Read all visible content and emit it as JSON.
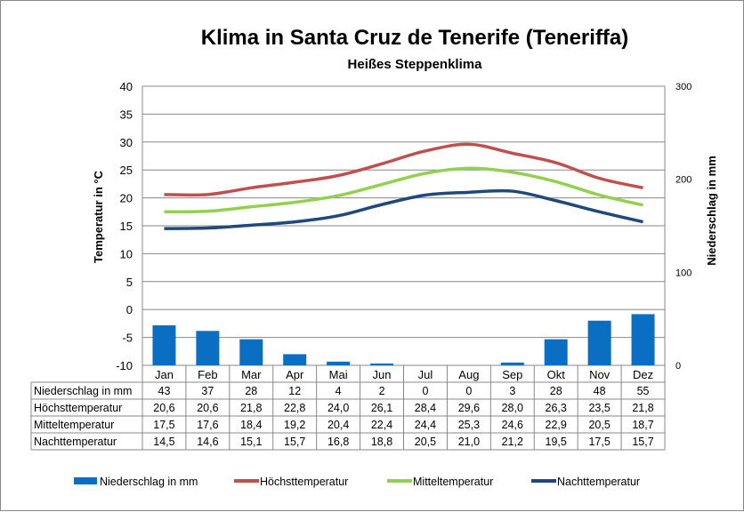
{
  "chart_data": {
    "type": "bar+line",
    "title": "Klima in Santa Cruz de Tenerife (Teneriffa)",
    "subtitle": "Heißes Steppenklima",
    "ylabel_left": "Temperatur in °C",
    "ylabel_right": "Niederschlag in mm",
    "ylim_left": [
      -10,
      40
    ],
    "yticks_left": [
      -10,
      -5,
      0,
      5,
      10,
      15,
      20,
      25,
      30,
      35,
      40
    ],
    "ylim_right": [
      0,
      300
    ],
    "yticks_right": [
      0,
      100,
      200,
      300
    ],
    "grid": true,
    "legend_placement": "bottom",
    "categories": [
      "Jan",
      "Feb",
      "Mar",
      "Apr",
      "Mai",
      "Jun",
      "Jul",
      "Aug",
      "Sep",
      "Okt",
      "Nov",
      "Dez"
    ],
    "series": [
      {
        "name": "Niederschlag in mm",
        "type": "bar",
        "axis": "right",
        "color": "#0a6fc2",
        "values": [
          43,
          37,
          28,
          12,
          4,
          2,
          0,
          0,
          3,
          28,
          48,
          55
        ],
        "labels": [
          "43",
          "37",
          "28",
          "12",
          "4",
          "2",
          "0",
          "0",
          "3",
          "28",
          "48",
          "55"
        ]
      },
      {
        "name": "Höchsttemperatur",
        "type": "line",
        "axis": "left",
        "color": "#c0504d",
        "values": [
          20.6,
          20.6,
          21.8,
          22.8,
          24.0,
          26.1,
          28.4,
          29.6,
          28.0,
          26.3,
          23.5,
          21.8
        ],
        "labels": [
          "20,6",
          "20,6",
          "21,8",
          "22,8",
          "24,0",
          "26,1",
          "28,4",
          "29,6",
          "28,0",
          "26,3",
          "23,5",
          "21,8"
        ]
      },
      {
        "name": "Mitteltemperatur",
        "type": "line",
        "axis": "left",
        "color": "#92d050",
        "values": [
          17.5,
          17.6,
          18.4,
          19.2,
          20.4,
          22.4,
          24.4,
          25.3,
          24.6,
          22.9,
          20.5,
          18.7
        ],
        "labels": [
          "17,5",
          "17,6",
          "18,4",
          "19,2",
          "20,4",
          "22,4",
          "24,4",
          "25,3",
          "24,6",
          "22,9",
          "20,5",
          "18,7"
        ]
      },
      {
        "name": "Nachttemperatur",
        "type": "line",
        "axis": "left",
        "color": "#1f497d",
        "values": [
          14.5,
          14.6,
          15.1,
          15.7,
          16.8,
          18.8,
          20.5,
          21.0,
          21.2,
          19.5,
          17.5,
          15.7
        ],
        "labels": [
          "14,5",
          "14,6",
          "15,1",
          "15,7",
          "16,8",
          "18,8",
          "20,5",
          "21,0",
          "21,2",
          "19,5",
          "17,5",
          "15,7"
        ]
      }
    ]
  }
}
